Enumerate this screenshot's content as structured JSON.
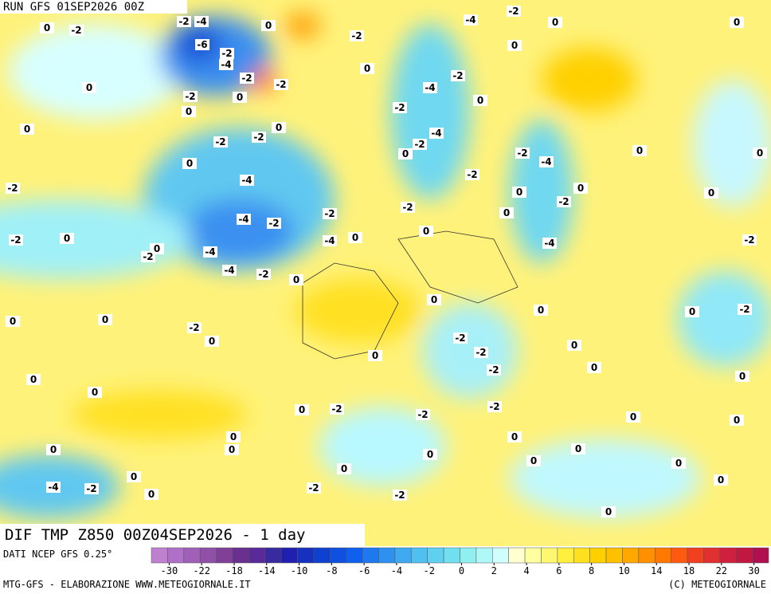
{
  "header": {
    "run": "RUN GFS 01SEP2026 00Z"
  },
  "map": {
    "title": "DIF TMP Z850 00Z04SEP2026 - 1 day",
    "contour_labels": [
      "0",
      "-2",
      "-2",
      "-4",
      "0",
      "-6",
      "-2",
      "-4",
      "-2",
      "-2",
      "-4",
      "-2",
      "0",
      "0",
      "0",
      "0",
      "-2",
      "-2",
      "0",
      "0",
      "0",
      "-4",
      "-2",
      "0",
      "-2",
      "0",
      "0",
      "-2",
      "-2",
      "-4",
      "-2",
      "0",
      "0",
      "0",
      "-2",
      "-4",
      "0",
      "-2",
      "-4",
      "-2",
      "0",
      "0",
      "-2",
      "0",
      "-2",
      "-2",
      "0",
      "-4",
      "-2",
      "-2",
      "0",
      "0",
      "-4",
      "0",
      "0",
      "-2",
      "-4",
      "-4",
      "-2",
      "-4",
      "-2",
      "0",
      "0",
      "0",
      "0",
      "-2",
      "0",
      "0",
      "-2",
      "0",
      "-2",
      "0",
      "-2",
      "0",
      "-2",
      "0",
      "0",
      "0",
      "0",
      "0",
      "-2",
      "-2",
      "-2",
      "0",
      "0",
      "0",
      "0",
      "0",
      "0",
      "0",
      "0",
      "0",
      "0",
      "0",
      "0",
      "-4",
      "-2",
      "-2",
      "0",
      "0",
      "-2",
      "0"
    ]
  },
  "colorbar": {
    "source": "DATI NCEP GFS 0.25°",
    "ticks": [
      -30,
      -22,
      -18,
      -14,
      -10,
      -8,
      -6,
      -4,
      -2,
      0,
      2,
      4,
      6,
      8,
      10,
      14,
      18,
      22,
      30
    ],
    "colors": [
      "#c080d0",
      "#b070c8",
      "#a060b8",
      "#9050a8",
      "#804098",
      "#6a3090",
      "#5a2a98",
      "#3a2aa0",
      "#2020b0",
      "#1830c0",
      "#1040d0",
      "#1050e0",
      "#1060f0",
      "#2078f0",
      "#3090f0",
      "#40a8f0",
      "#50c0f0",
      "#60d0f0",
      "#70e0f0",
      "#90f0f0",
      "#b0f8f8",
      "#d0ffff",
      "#ffffd0",
      "#ffffa0",
      "#fff870",
      "#fff040",
      "#ffe020",
      "#ffd000",
      "#ffc000",
      "#ffa800",
      "#ff9000",
      "#ff7800",
      "#ff5a10",
      "#f04020",
      "#e03030",
      "#d02040",
      "#c01840",
      "#b01050"
    ]
  },
  "footer": {
    "left": "MTG-GFS - ELABORAZIONE WWW.METEOGIORNALE.IT",
    "right": "(C) METEOGIORNALE"
  }
}
